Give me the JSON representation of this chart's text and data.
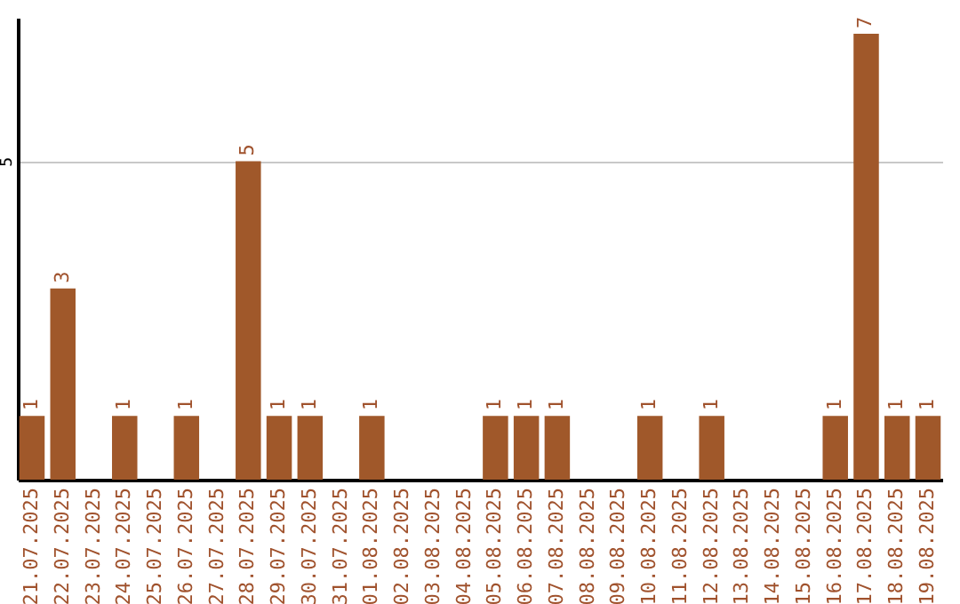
{
  "chart_data": {
    "type": "bar",
    "categories": [
      "21.07.2025",
      "22.07.2025",
      "23.07.2025",
      "24.07.2025",
      "25.07.2025",
      "26.07.2025",
      "27.07.2025",
      "28.07.2025",
      "29.07.2025",
      "30.07.2025",
      "31.07.2025",
      "01.08.2025",
      "02.08.2025",
      "03.08.2025",
      "04.08.2025",
      "05.08.2025",
      "06.08.2025",
      "07.08.2025",
      "08.08.2025",
      "09.08.2025",
      "10.08.2025",
      "11.08.2025",
      "12.08.2025",
      "13.08.2025",
      "14.08.2025",
      "15.08.2025",
      "16.08.2025",
      "17.08.2025",
      "18.08.2025",
      "19.08.2025"
    ],
    "values": [
      1,
      3,
      0,
      1,
      0,
      1,
      0,
      5,
      1,
      1,
      0,
      1,
      0,
      0,
      0,
      1,
      1,
      1,
      0,
      0,
      1,
      0,
      1,
      0,
      0,
      0,
      1,
      7,
      1,
      1
    ],
    "value_labels": [
      "1",
      "3",
      null,
      "1",
      null,
      "1",
      null,
      "5",
      "1",
      "1",
      null,
      "1",
      null,
      null,
      null,
      "1",
      "1",
      "1",
      null,
      null,
      "1",
      null,
      "1",
      null,
      null,
      null,
      "1",
      "7",
      "1",
      "1"
    ],
    "color": "#a0582a",
    "ylim": [
      0,
      7.25
    ],
    "yticks": [
      5
    ],
    "grid": "y"
  }
}
